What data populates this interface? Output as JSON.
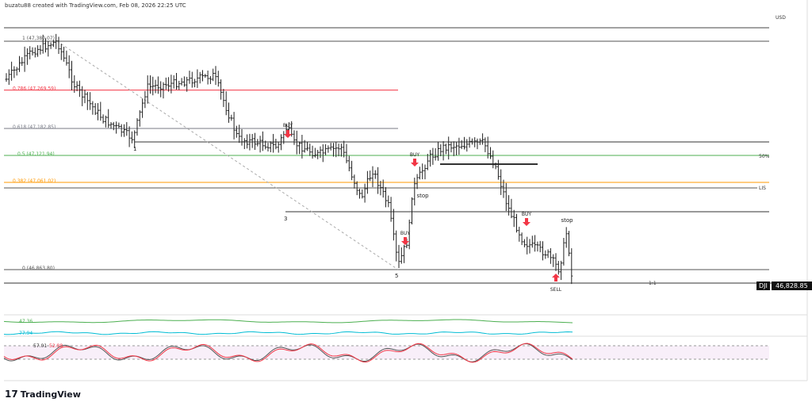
{
  "header": {
    "credit": "buzatu88 created with TradingView.com, Feb 08, 2026 22:25 UTC",
    "currency": "USD"
  },
  "chart_data": {
    "type": "ohlc",
    "symbol": "DJI",
    "last_price": "46,828.85",
    "fib_levels": [
      {
        "label": "1 (47,380.07)",
        "price": 47380.07,
        "color": "#555555"
      },
      {
        "label": "0.786 (47,269.59)",
        "price": 47269.59,
        "color": "#f23645"
      },
      {
        "label": "0.618 (47,182.85)",
        "price": 47182.85,
        "color": "#787b86"
      },
      {
        "label": "0.5 (47,121.94)",
        "price": 47121.94,
        "color": "#4caf50"
      },
      {
        "label": "0.382 (47,061.02)",
        "price": 47061.02,
        "color": "#ff9800"
      },
      {
        "label": "0 (46,863.80)",
        "price": 46863.8,
        "color": "#555555"
      }
    ],
    "line_labels": {
      "fifty": "50%",
      "lis": "LIS",
      "one_to_one": "1:1"
    },
    "annotations": {
      "wave1": "1",
      "wave3": "3",
      "wave5": "5",
      "buy": "BUY",
      "stop": "stop",
      "sell": "SELL"
    },
    "indicators": {
      "ind1_value": "47.36",
      "ind1_color": "#4caf50",
      "ind2_value": "77.94",
      "ind2_color": "#00bcd4",
      "stoch_k": "57.01",
      "stoch_d": "52.98",
      "stoch_k_color": "#555555",
      "stoch_d_color": "#f23645"
    }
  },
  "brand": {
    "name": "TradingView"
  }
}
